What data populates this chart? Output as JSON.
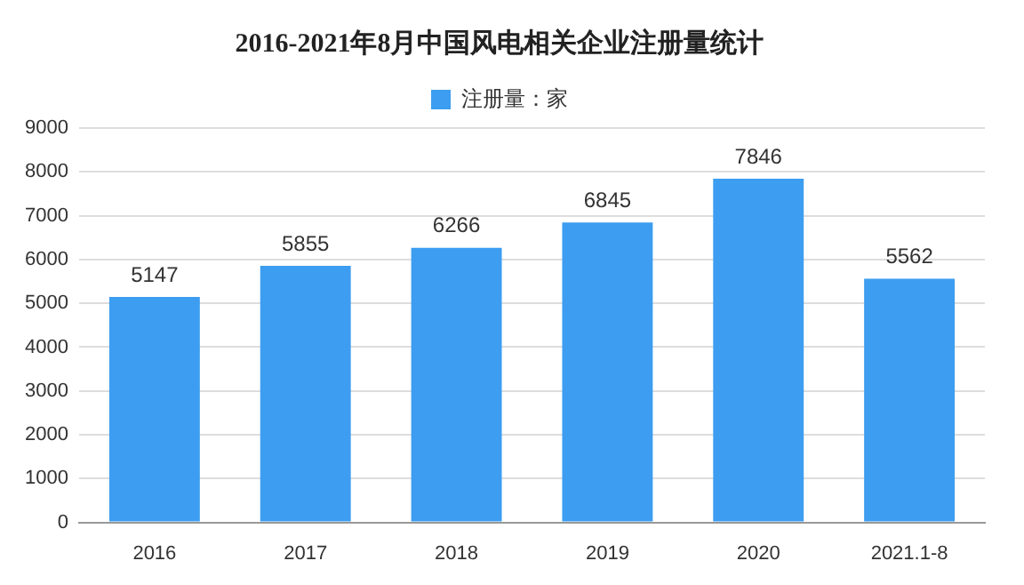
{
  "chart_data": {
    "type": "bar",
    "title": "2016-2021年8月中国风电相关企业注册量统计",
    "categories": [
      "2016",
      "2017",
      "2018",
      "2019",
      "2020",
      "2021.1-8"
    ],
    "series": [
      {
        "name": "注册量：家",
        "color": "#3d9df0",
        "values": [
          5147,
          5855,
          6266,
          6845,
          7846,
          5562
        ]
      }
    ],
    "ylim": [
      0,
      9000
    ],
    "yticks": [
      0,
      1000,
      2000,
      3000,
      4000,
      5000,
      6000,
      7000,
      8000,
      9000
    ],
    "grid": "y",
    "legend": "top",
    "data_labels": true
  }
}
